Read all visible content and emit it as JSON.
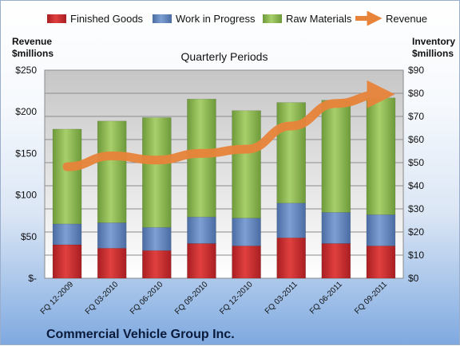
{
  "chart_data": {
    "type": "bar",
    "stacked": true,
    "title": "Quarterly Periods",
    "subtitle": "Commercial Vehicle Group Inc.",
    "y_left_label": [
      "Revenue",
      "$millions"
    ],
    "y_right_label": [
      "Inventory",
      "$millions"
    ],
    "y_left_range": [
      0,
      250
    ],
    "y_right_range": [
      0,
      90
    ],
    "y_left_ticks": [
      "$-",
      "$50",
      "$100",
      "$150",
      "$200",
      "$250"
    ],
    "y_right_ticks": [
      "$0",
      "$10",
      "$20",
      "$30",
      "$40",
      "$50",
      "$60",
      "$70",
      "$80",
      "$90"
    ],
    "grid": true,
    "legend_position": "top",
    "categories": [
      "FQ 12-2009",
      "FQ 03-2010",
      "FQ 06-2010",
      "FQ 09-2010",
      "FQ 12-2010",
      "FQ 03-2011",
      "FQ 06-2011",
      "FQ 09-2011"
    ],
    "series": [
      {
        "name": "Finished Goods",
        "axis": "right",
        "color": "#c0282d",
        "values": [
          14.5,
          13,
          12,
          15,
          14,
          17.5,
          15,
          14
        ]
      },
      {
        "name": "Work in Progress",
        "axis": "right",
        "color": "#5b7fb6",
        "values": [
          9,
          11,
          10,
          11.5,
          12,
          15,
          13.5,
          13.5
        ]
      },
      {
        "name": "Raw Materials",
        "axis": "right",
        "color": "#8cb451",
        "values": [
          41,
          44,
          47.5,
          51,
          46.5,
          43.5,
          48.5,
          50.5
        ]
      },
      {
        "name": "Revenue",
        "axis": "left",
        "type": "line",
        "color": "#e8843a",
        "values": [
          134,
          147,
          142,
          150,
          155,
          183,
          210,
          221
        ]
      }
    ]
  }
}
